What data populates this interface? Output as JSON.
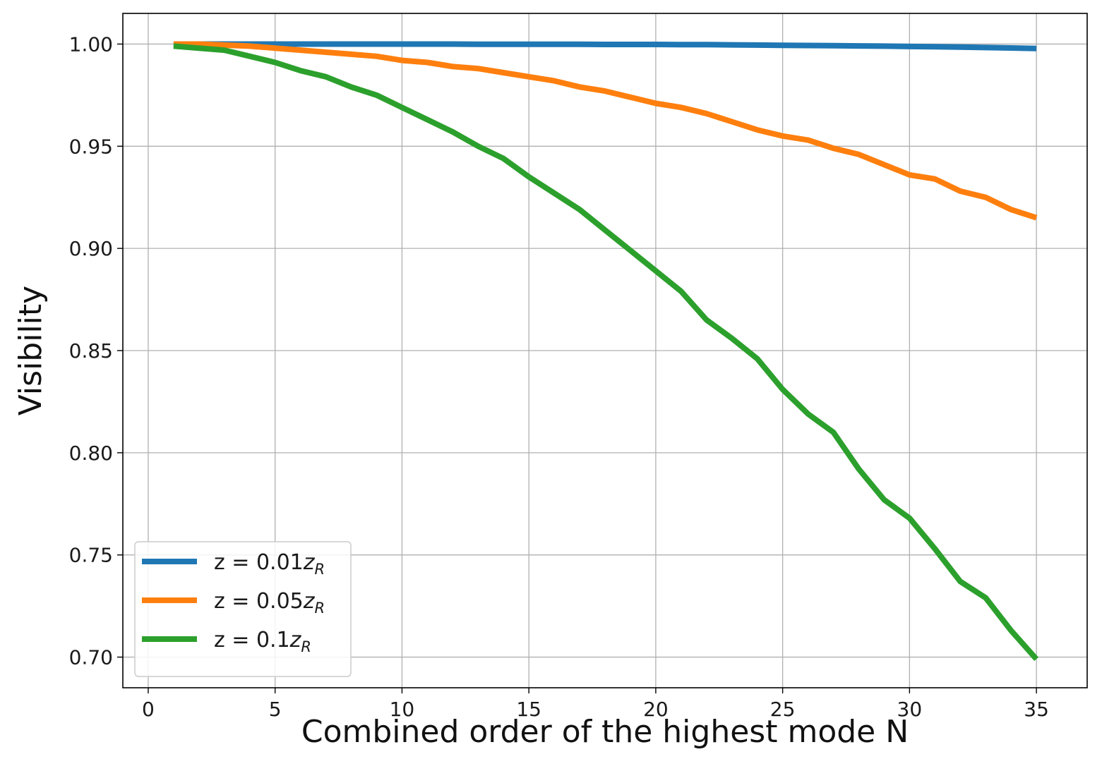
{
  "chart_data": {
    "type": "line",
    "title": "",
    "xlabel": "Combined order of the highest mode N",
    "ylabel": "Visibility",
    "xlim": [
      -1,
      37
    ],
    "ylim": [
      0.685,
      1.015
    ],
    "x_ticks": [
      0,
      5,
      10,
      15,
      20,
      25,
      30,
      35
    ],
    "y_ticks": [
      0.7,
      0.75,
      0.8,
      0.85,
      0.9,
      0.95,
      1.0
    ],
    "y_tick_labels": [
      "0.70",
      "0.75",
      "0.80",
      "0.85",
      "0.90",
      "0.95",
      "1.00"
    ],
    "grid": true,
    "legend_position": "lower-left",
    "x": [
      1,
      2,
      3,
      4,
      5,
      6,
      7,
      8,
      9,
      10,
      11,
      12,
      13,
      14,
      15,
      16,
      17,
      18,
      19,
      20,
      21,
      22,
      23,
      24,
      25,
      26,
      27,
      28,
      29,
      30,
      31,
      32,
      33,
      34,
      35
    ],
    "series": [
      {
        "name": "z = 0.01",
        "name_italic": "z",
        "name_subscript": "R",
        "color": "#1f77b4",
        "values": [
          1.0,
          1.0,
          1.0,
          1.0,
          1.0,
          1.0,
          1.0,
          1.0,
          1.0,
          1.0,
          1.0,
          1.0,
          0.9999,
          0.9999,
          0.9999,
          0.9999,
          0.9999,
          0.9998,
          0.9998,
          0.9998,
          0.9997,
          0.9997,
          0.9996,
          0.9995,
          0.9994,
          0.9993,
          0.9992,
          0.9991,
          0.999,
          0.9988,
          0.9987,
          0.9985,
          0.9983,
          0.9981,
          0.9978
        ]
      },
      {
        "name": "z = 0.05",
        "name_italic": "z",
        "name_subscript": "R",
        "color": "#ff7f0e",
        "values": [
          1.0,
          1.0,
          0.9995,
          0.999,
          0.998,
          0.997,
          0.996,
          0.995,
          0.994,
          0.992,
          0.991,
          0.989,
          0.988,
          0.986,
          0.984,
          0.982,
          0.979,
          0.977,
          0.974,
          0.971,
          0.969,
          0.966,
          0.962,
          0.958,
          0.955,
          0.953,
          0.949,
          0.946,
          0.941,
          0.936,
          0.934,
          0.928,
          0.925,
          0.919,
          0.915
        ]
      },
      {
        "name": "z = 0.1",
        "name_italic": "z",
        "name_subscript": "R",
        "color": "#2ca02c",
        "values": [
          0.999,
          0.998,
          0.997,
          0.994,
          0.991,
          0.987,
          0.984,
          0.979,
          0.975,
          0.969,
          0.963,
          0.957,
          0.95,
          0.944,
          0.935,
          0.927,
          0.919,
          0.909,
          0.899,
          0.889,
          0.879,
          0.865,
          0.856,
          0.846,
          0.831,
          0.819,
          0.81,
          0.792,
          0.777,
          0.768,
          0.753,
          0.737,
          0.729,
          0.713,
          0.699
        ]
      }
    ]
  }
}
